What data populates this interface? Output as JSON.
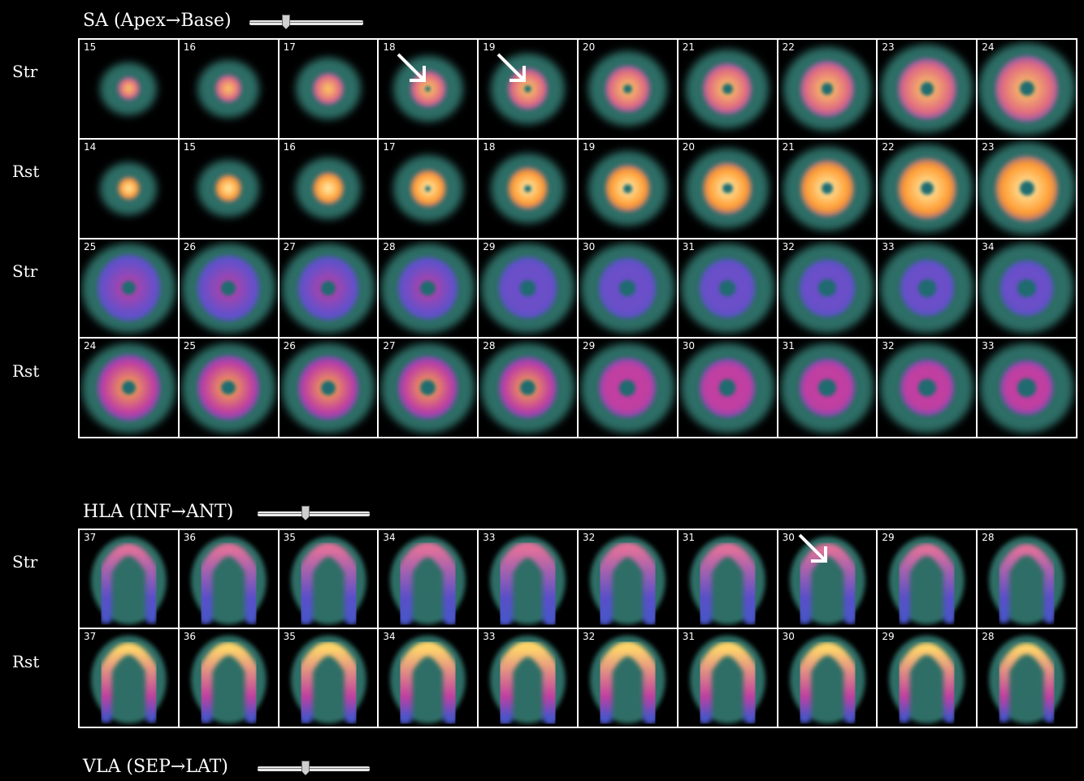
{
  "sections": {
    "sa": {
      "title": "SA (Apex→Base)",
      "slider_pos": 0.28
    },
    "hla": {
      "title": "HLA (INF→ANT)",
      "slider_pos": 0.4
    },
    "vla": {
      "title": "VLA (SEP→LAT)",
      "slider_pos": 0.4
    }
  },
  "rows": [
    {
      "label": "Str",
      "kind": "sa",
      "phase": "stress",
      "slices": [
        "15",
        "16",
        "17",
        "18",
        "19",
        "20",
        "21",
        "22",
        "23",
        "24"
      ],
      "arrows": [
        3,
        4
      ]
    },
    {
      "label": "Rst",
      "kind": "sa",
      "phase": "rest",
      "slices": [
        "14",
        "15",
        "16",
        "17",
        "18",
        "19",
        "20",
        "21",
        "22",
        "23"
      ],
      "arrows": []
    },
    {
      "label": "Str",
      "kind": "sa2",
      "phase": "stress",
      "slices": [
        "25",
        "26",
        "27",
        "28",
        "29",
        "30",
        "31",
        "32",
        "33",
        "34"
      ],
      "arrows": []
    },
    {
      "label": "Rst",
      "kind": "sa2",
      "phase": "rest",
      "slices": [
        "24",
        "25",
        "26",
        "27",
        "28",
        "29",
        "30",
        "31",
        "32",
        "33"
      ],
      "arrows": []
    },
    {
      "label": "Str",
      "kind": "hla",
      "phase": "stress",
      "slices": [
        "37",
        "36",
        "35",
        "34",
        "33",
        "32",
        "31",
        "30",
        "29",
        "28"
      ],
      "arrows": [
        7
      ]
    },
    {
      "label": "Rst",
      "kind": "hla",
      "phase": "rest",
      "slices": [
        "37",
        "36",
        "35",
        "34",
        "33",
        "32",
        "31",
        "30",
        "29",
        "28"
      ],
      "arrows": []
    }
  ],
  "colors": {
    "background": "#000000",
    "grid_line": "#ffffff",
    "halo": "#2d6e66",
    "myocardium_low": "#5a4fc8",
    "myocardium_mid": "#c03fa0",
    "myocardium_high": "#ffb030"
  }
}
